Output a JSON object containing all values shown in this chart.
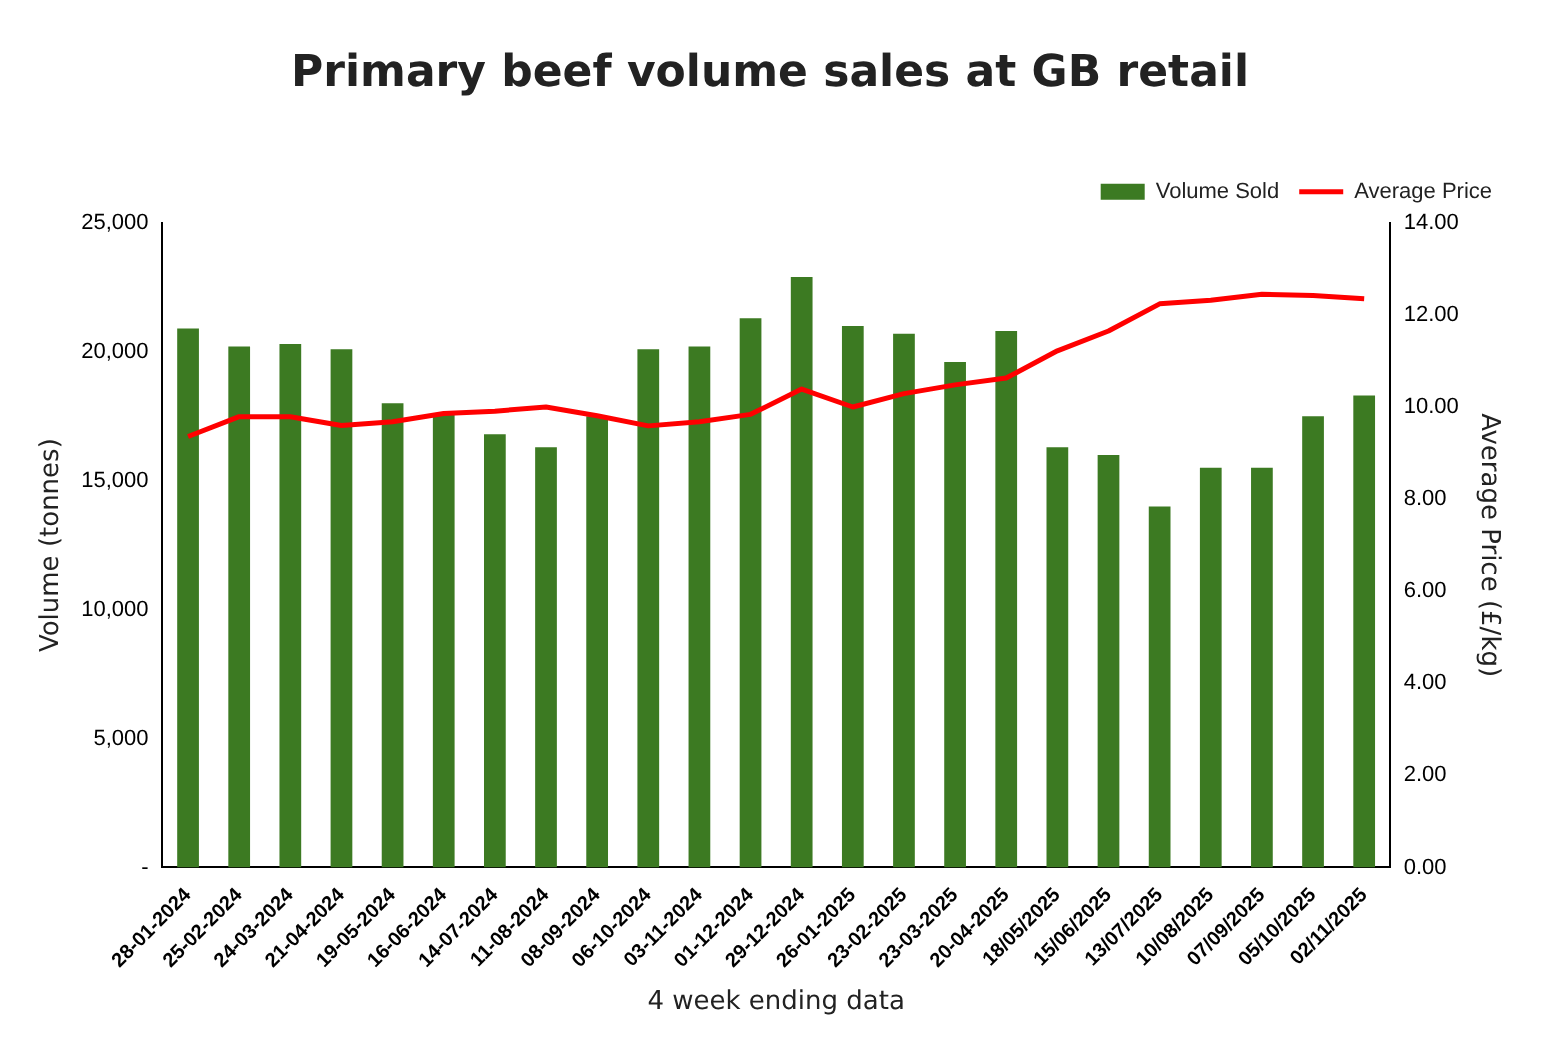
{
  "chart_data": {
    "type": "bar",
    "title": "Primary beef volume sales at GB retail",
    "xlabel": "4 week ending data",
    "ylabel": "Volume (tonnes)",
    "y2label": "Average Price (£/kg)",
    "categories": [
      "28-01-2024",
      "25-02-2024",
      "24-03-2024",
      "21-04-2024",
      "19-05-2024",
      "16-06-2024",
      "14-07-2024",
      "11-08-2024",
      "08-09-2024",
      "06-10-2024",
      "03-11-2024",
      "01-12-2024",
      "29-12-2024",
      "26-01-2025",
      "23-02-2025",
      "23-03-2025",
      "20-04-2025",
      "18/05/2025",
      "15/06/2025",
      "13/07/2025",
      "10/08/2025",
      "07/09/2025",
      "05/10/2025",
      "02/11/2025"
    ],
    "series": [
      {
        "name": "Volume Sold",
        "color": "#3c7a22",
        "values": [
          20900,
          20200,
          20300,
          20100,
          18000,
          17600,
          16800,
          16300,
          17500,
          20100,
          20200,
          21300,
          22900,
          21000,
          20700,
          19600,
          20800,
          16300,
          16000,
          14000,
          15500,
          15500,
          17500,
          18300
        ]
      },
      {
        "name": "Average Price",
        "type": "line",
        "axis": "y2",
        "color": "#ff0000",
        "values": [
          9.36,
          9.79,
          9.79,
          9.6,
          9.68,
          9.86,
          9.91,
          10.0,
          9.81,
          9.59,
          9.68,
          9.84,
          10.39,
          10.0,
          10.29,
          10.48,
          10.63,
          11.22,
          11.65,
          12.24,
          12.32,
          12.45,
          12.42,
          12.35
        ]
      }
    ],
    "ylim": [
      0,
      25000
    ],
    "yticks": [
      {
        "value": 0,
        "label": "-"
      },
      {
        "value": 5000,
        "label": "5,000"
      },
      {
        "value": 10000,
        "label": "10,000"
      },
      {
        "value": 15000,
        "label": "15,000"
      },
      {
        "value": 20000,
        "label": "20,000"
      },
      {
        "value": 25000,
        "label": "25,000"
      }
    ],
    "y2lim": [
      0,
      14
    ],
    "y2ticks": [
      {
        "value": 0,
        "label": "0.00"
      },
      {
        "value": 2,
        "label": "2.00"
      },
      {
        "value": 4,
        "label": "4.00"
      },
      {
        "value": 6,
        "label": "6.00"
      },
      {
        "value": 8,
        "label": "8.00"
      },
      {
        "value": 10,
        "label": "10.00"
      },
      {
        "value": 12,
        "label": "12.00"
      },
      {
        "value": 14,
        "label": "14.00"
      }
    ],
    "grid": false,
    "legend": "top right",
    "marker": "none"
  }
}
